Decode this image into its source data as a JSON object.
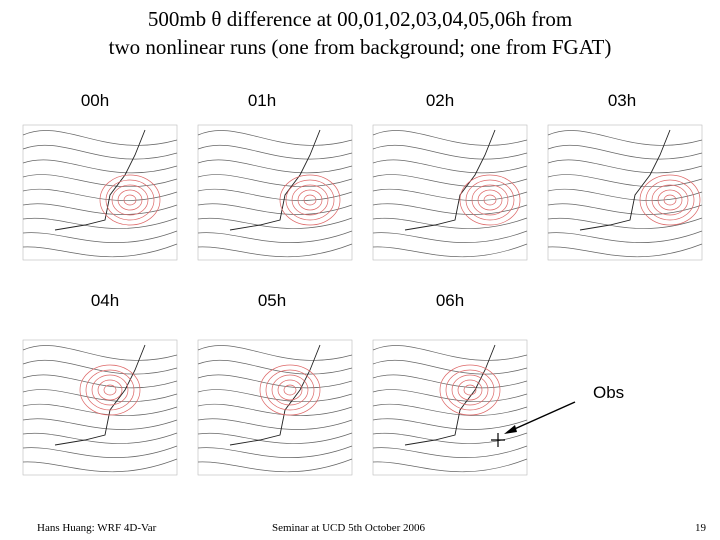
{
  "title": {
    "line1": "500mb θ difference at 00,01,02,03,04,05,06h from",
    "line2": "two nonlinear runs (one from background; one from FGAT)"
  },
  "panels": [
    {
      "label": "00h"
    },
    {
      "label": "01h"
    },
    {
      "label": "02h"
    },
    {
      "label": "03h"
    },
    {
      "label": "04h"
    },
    {
      "label": "05h"
    },
    {
      "label": "06h"
    }
  ],
  "annotation": "Obs",
  "footer": {
    "left": "Hans Huang: WRF 4D-Var",
    "center": "Seminar at UCD  5th October 2006",
    "page": "19"
  }
}
